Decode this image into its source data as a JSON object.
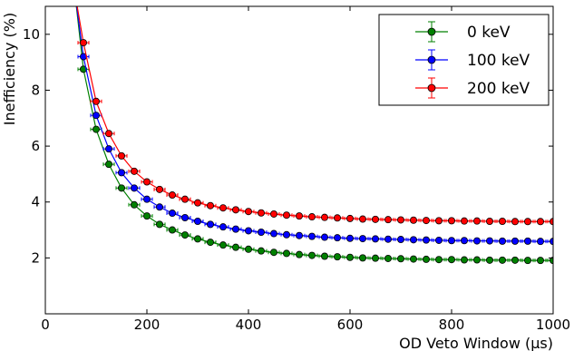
{
  "chart_data": {
    "type": "line",
    "title": "",
    "xlabel": "OD Veto Window (μs)",
    "ylabel": "Inefficiency (%)",
    "xlim": [
      0,
      1000
    ],
    "ylim": [
      0,
      11
    ],
    "xticks": [
      0,
      200,
      400,
      600,
      800,
      1000
    ],
    "yticks": [
      2,
      4,
      6,
      8,
      10
    ],
    "grid": false,
    "legend_position": "top-right",
    "error_bars": true,
    "x": [
      75,
      100,
      125,
      150,
      175,
      200,
      225,
      250,
      275,
      300,
      325,
      350,
      375,
      400,
      425,
      450,
      475,
      500,
      525,
      550,
      575,
      600,
      625,
      650,
      675,
      700,
      725,
      750,
      775,
      800,
      825,
      850,
      875,
      900,
      925,
      950,
      975,
      1000
    ],
    "series": [
      {
        "name": "0 keV",
        "color": "#008000",
        "values": [
          8.75,
          6.6,
          5.35,
          4.5,
          3.9,
          3.5,
          3.2,
          3.0,
          2.82,
          2.68,
          2.56,
          2.46,
          2.38,
          2.31,
          2.25,
          2.2,
          2.16,
          2.12,
          2.09,
          2.06,
          2.04,
          2.02,
          2.0,
          1.99,
          1.98,
          1.97,
          1.96,
          1.95,
          1.94,
          1.94,
          1.93,
          1.93,
          1.92,
          1.92,
          1.92,
          1.91,
          1.91,
          1.91
        ]
      },
      {
        "name": "100 keV",
        "color": "#0000ff",
        "values": [
          9.2,
          7.1,
          5.9,
          5.05,
          4.5,
          4.1,
          3.82,
          3.6,
          3.44,
          3.31,
          3.2,
          3.11,
          3.03,
          2.97,
          2.92,
          2.87,
          2.83,
          2.8,
          2.77,
          2.74,
          2.72,
          2.7,
          2.69,
          2.68,
          2.67,
          2.66,
          2.65,
          2.64,
          2.63,
          2.62,
          2.62,
          2.61,
          2.61,
          2.6,
          2.6,
          2.6,
          2.59,
          2.59
        ]
      },
      {
        "name": "200 keV",
        "color": "#ff0000",
        "values": [
          9.7,
          7.6,
          6.45,
          5.65,
          5.1,
          4.72,
          4.45,
          4.25,
          4.1,
          3.97,
          3.87,
          3.79,
          3.72,
          3.66,
          3.61,
          3.57,
          3.53,
          3.5,
          3.47,
          3.45,
          3.43,
          3.41,
          3.39,
          3.38,
          3.37,
          3.36,
          3.35,
          3.34,
          3.33,
          3.33,
          3.32,
          3.32,
          3.31,
          3.31,
          3.3,
          3.3,
          3.3,
          3.3
        ]
      }
    ]
  }
}
